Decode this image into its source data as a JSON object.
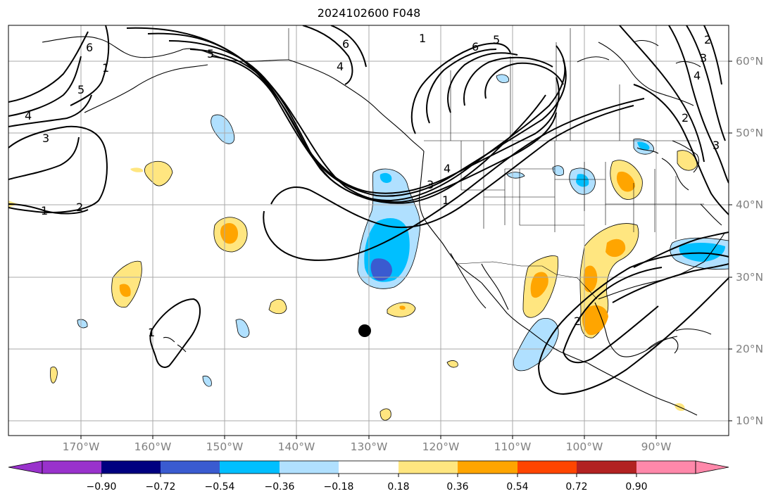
{
  "title": "2024102600 F048",
  "map": {
    "lon_range": [
      -180,
      -80
    ],
    "lat_range": [
      8,
      65
    ],
    "lon_ticks": [
      "170°W",
      "160°W",
      "150°W",
      "140°W",
      "130°W",
      "120°W",
      "110°W",
      "100°W",
      "90°W"
    ],
    "lat_ticks": [
      "60°N",
      "50°N",
      "40°N",
      "30°N",
      "20°N",
      "10°N"
    ],
    "gridlines": true,
    "contour_labels": [
      "6",
      "5",
      "4",
      "3",
      "2",
      "1",
      "1",
      "2",
      "3",
      "4",
      "5",
      "6",
      "3",
      "4",
      "5",
      "6",
      "1",
      "2",
      "3",
      "4",
      "1",
      "1",
      "2"
    ],
    "marker": {
      "lon": -131,
      "lat": 22.5,
      "color": "#000000"
    }
  },
  "colorbar": {
    "ticks": [
      "−0.90",
      "−0.72",
      "−0.54",
      "−0.36",
      "−0.18",
      "0.18",
      "0.36",
      "0.54",
      "0.72",
      "0.90"
    ],
    "colors": [
      "#9932cc",
      "#000080",
      "#3a5bd0",
      "#00bfff",
      "#b0e0ff",
      "#ffffff",
      "#ffe680",
      "#ffa500",
      "#ff4500",
      "#b22222",
      "#ff88aa"
    ]
  },
  "colors": {
    "positive_light": "#ffe680",
    "positive_mid": "#ffa500",
    "negative_light": "#b0e0ff",
    "negative_mid": "#00bfff",
    "negative_dark": "#3a5bd0",
    "grid": "#a9a9a9",
    "tick_text": "#808080"
  }
}
